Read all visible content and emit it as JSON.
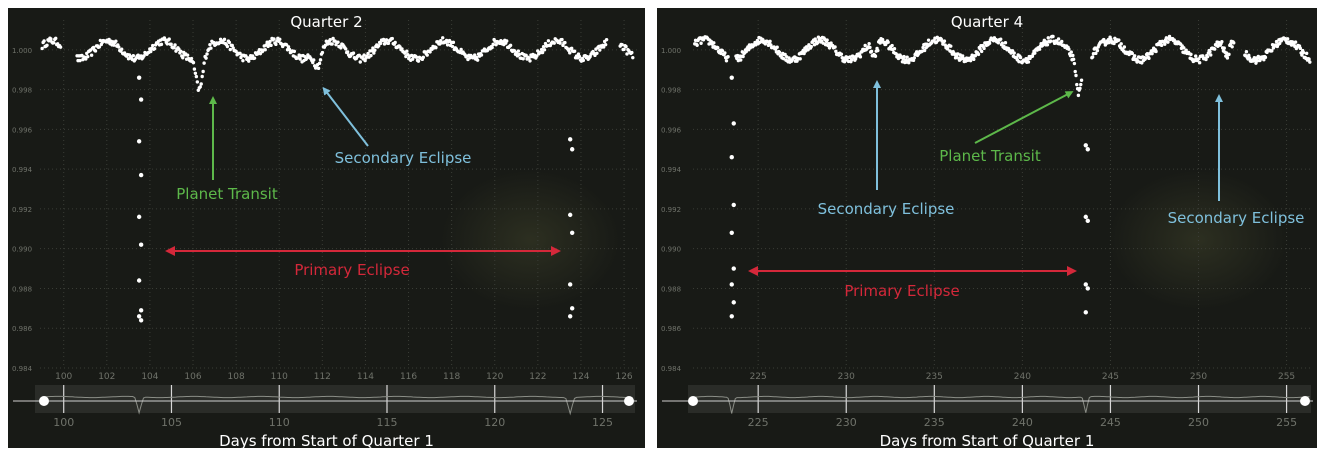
{
  "xlabel": "Days from Start of Quarter 1",
  "colors": {
    "panel": "#181a16",
    "points": "#ffffff",
    "grid": "#3a3d36",
    "tick_text": "#6f726a",
    "transit": "#5db84a",
    "secondary": "#7fc0dc",
    "primary": "#d4283a",
    "scrub": "#2a2c28"
  },
  "chart_data": [
    {
      "type": "scatter",
      "title": "Quarter 2",
      "xlim": [
        98.9,
        126.6
      ],
      "ylim": [
        0.984,
        1.0015
      ],
      "yticks": [
        "1.000",
        "0.998",
        "0.996",
        "0.994",
        "0.992",
        "0.990",
        "0.988",
        "0.986",
        "0.984"
      ],
      "xticks": [
        "100",
        "102",
        "104",
        "106",
        "108",
        "110",
        "112",
        "114",
        "116",
        "118",
        "120",
        "122",
        "124",
        "126"
      ],
      "scrub_ticks": [
        "100",
        "105",
        "110",
        "115",
        "120",
        "125"
      ],
      "baseline": 1.0,
      "oscillation": {
        "amplitude": 0.00045,
        "period_days": 2.6
      },
      "gaps": [
        [
          99.9,
          100.6
        ],
        [
          125.2,
          125.8
        ]
      ],
      "primary_eclipses": [
        {
          "x": 103.5,
          "flux": [
            0.9986,
            0.9975,
            0.9954,
            0.9937,
            0.9916,
            0.9902,
            0.9884,
            0.9869,
            0.9866,
            0.9864
          ]
        },
        {
          "x": 123.5,
          "flux": [
            0.9955,
            0.995,
            0.9917,
            0.9908,
            0.9882,
            0.987,
            0.9866
          ]
        }
      ],
      "planet_transits": [
        {
          "x": 106.3,
          "depth": 0.0017
        }
      ],
      "secondary_eclipses": [
        {
          "x": 111.8,
          "depth": 0.0008
        }
      ],
      "annotations": {
        "planet_transit": "Planet Transit",
        "secondary_eclipse": "Secondary Eclipse",
        "primary_eclipse": "Primary Eclipse"
      }
    },
    {
      "type": "scatter",
      "title": "Quarter 4",
      "xlim": [
        221.3,
        256.5
      ],
      "ylim": [
        0.984,
        1.0015
      ],
      "yticks": [
        "1.000",
        "0.998",
        "0.996",
        "0.994",
        "0.992",
        "0.990",
        "0.988",
        "0.986",
        "0.984"
      ],
      "xticks": [
        "225",
        "230",
        "235",
        "240",
        "245",
        "250",
        "255"
      ],
      "scrub_ticks": [
        "225",
        "230",
        "235",
        "240",
        "245",
        "250",
        "255"
      ],
      "baseline": 1.0,
      "oscillation": {
        "amplitude": 0.0005,
        "period_days": 3.3
      },
      "gaps": [
        [
          223.3,
          223.7
        ],
        [
          243.4,
          243.9
        ],
        [
          252.0,
          252.6
        ]
      ],
      "primary_eclipses": [
        {
          "x": 223.5,
          "flux": [
            0.9986,
            0.9963,
            0.9946,
            0.9922,
            0.9908,
            0.989,
            0.9882,
            0.9873,
            0.9866
          ]
        },
        {
          "x": 243.6,
          "flux": [
            0.9952,
            0.995,
            0.9916,
            0.9914,
            0.9882,
            0.988,
            0.9868
          ]
        }
      ],
      "planet_transits": [
        {
          "x": 243.2,
          "depth": 0.0017
        }
      ],
      "secondary_eclipses": [
        {
          "x": 231.6,
          "depth": 0.0008
        },
        {
          "x": 251.6,
          "depth": 0.0008
        }
      ],
      "annotations": {
        "planet_transit": "Planet Transit",
        "secondary_eclipse": "Secondary Eclipse",
        "primary_eclipse": "Primary Eclipse"
      }
    }
  ]
}
